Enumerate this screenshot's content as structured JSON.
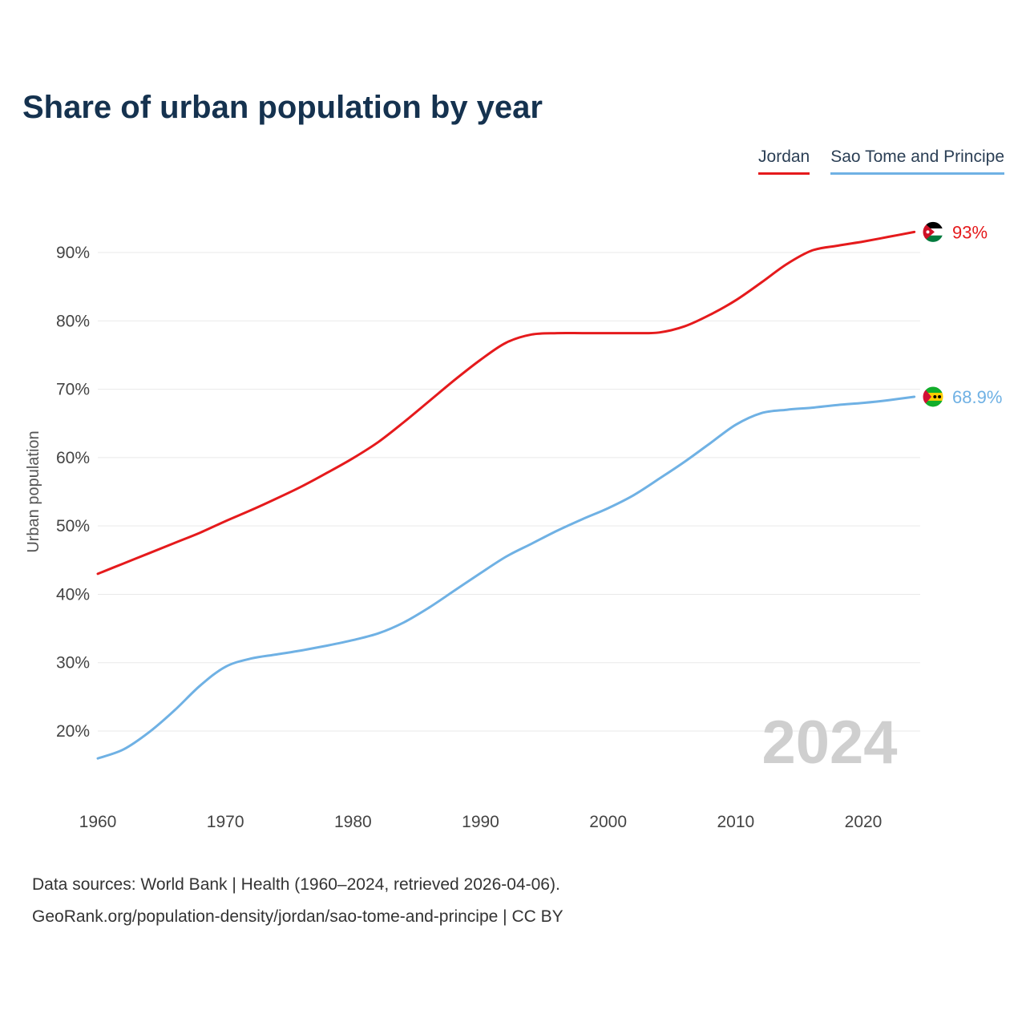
{
  "title": "Share of urban population by year",
  "legend": [
    {
      "label": "Jordan",
      "color": "#e51a1c"
    },
    {
      "label": "Sao Tome and Principe",
      "color": "#6fb1e4"
    }
  ],
  "watermark": "2024",
  "footer": {
    "line1": "Data sources: World Bank | Health (1960–2024, retrieved 2026-04-06).",
    "line2": "GeoRank.org/population-density/jordan/sao-tome-and-principe | CC BY"
  },
  "chart_data": {
    "type": "line",
    "title": "Share of urban population by year",
    "xlabel": "",
    "ylabel": "Urban population",
    "x": [
      1960,
      1962,
      1964,
      1966,
      1968,
      1970,
      1972,
      1974,
      1976,
      1978,
      1980,
      1982,
      1984,
      1986,
      1988,
      1990,
      1992,
      1994,
      1996,
      1998,
      2000,
      2002,
      2004,
      2006,
      2008,
      2010,
      2012,
      2014,
      2016,
      2018,
      2020,
      2022,
      2024
    ],
    "series": [
      {
        "name": "Jordan",
        "color": "#e51a1c",
        "flag": "jordan",
        "end_label": "93%",
        "values": [
          43.0,
          44.5,
          46.0,
          47.5,
          49.0,
          50.7,
          52.3,
          54.0,
          55.8,
          57.8,
          59.9,
          62.3,
          65.2,
          68.3,
          71.4,
          74.3,
          76.8,
          78.0,
          78.2,
          78.2,
          78.2,
          78.2,
          78.3,
          79.2,
          80.9,
          83.0,
          85.6,
          88.3,
          90.3,
          91.0,
          91.6,
          92.3,
          93.0
        ]
      },
      {
        "name": "Sao Tome and Principe",
        "color": "#6fb1e4",
        "flag": "sao_tome",
        "end_label": "68.9%",
        "values": [
          16.0,
          17.3,
          19.8,
          23.0,
          26.6,
          29.4,
          30.6,
          31.2,
          31.8,
          32.5,
          33.3,
          34.3,
          35.9,
          38.1,
          40.6,
          43.1,
          45.5,
          47.4,
          49.3,
          51.0,
          52.6,
          54.5,
          56.9,
          59.4,
          62.1,
          64.8,
          66.5,
          67.0,
          67.3,
          67.7,
          68.0,
          68.4,
          68.9
        ]
      }
    ],
    "xticks": [
      1960,
      1970,
      1980,
      1990,
      2000,
      2010,
      2020
    ],
    "yticks": [
      20,
      30,
      40,
      50,
      60,
      70,
      80,
      90
    ],
    "ytick_suffix": "%",
    "xlim": [
      1960,
      2024
    ],
    "ylim": [
      13,
      96
    ],
    "grid": true,
    "legend_position": "top-right",
    "colors": {
      "grid": "#e9e9e9",
      "tick_text": "#444444",
      "axis_label": "#555555",
      "watermark": "#cfcfcf",
      "title": "#15324f"
    }
  }
}
